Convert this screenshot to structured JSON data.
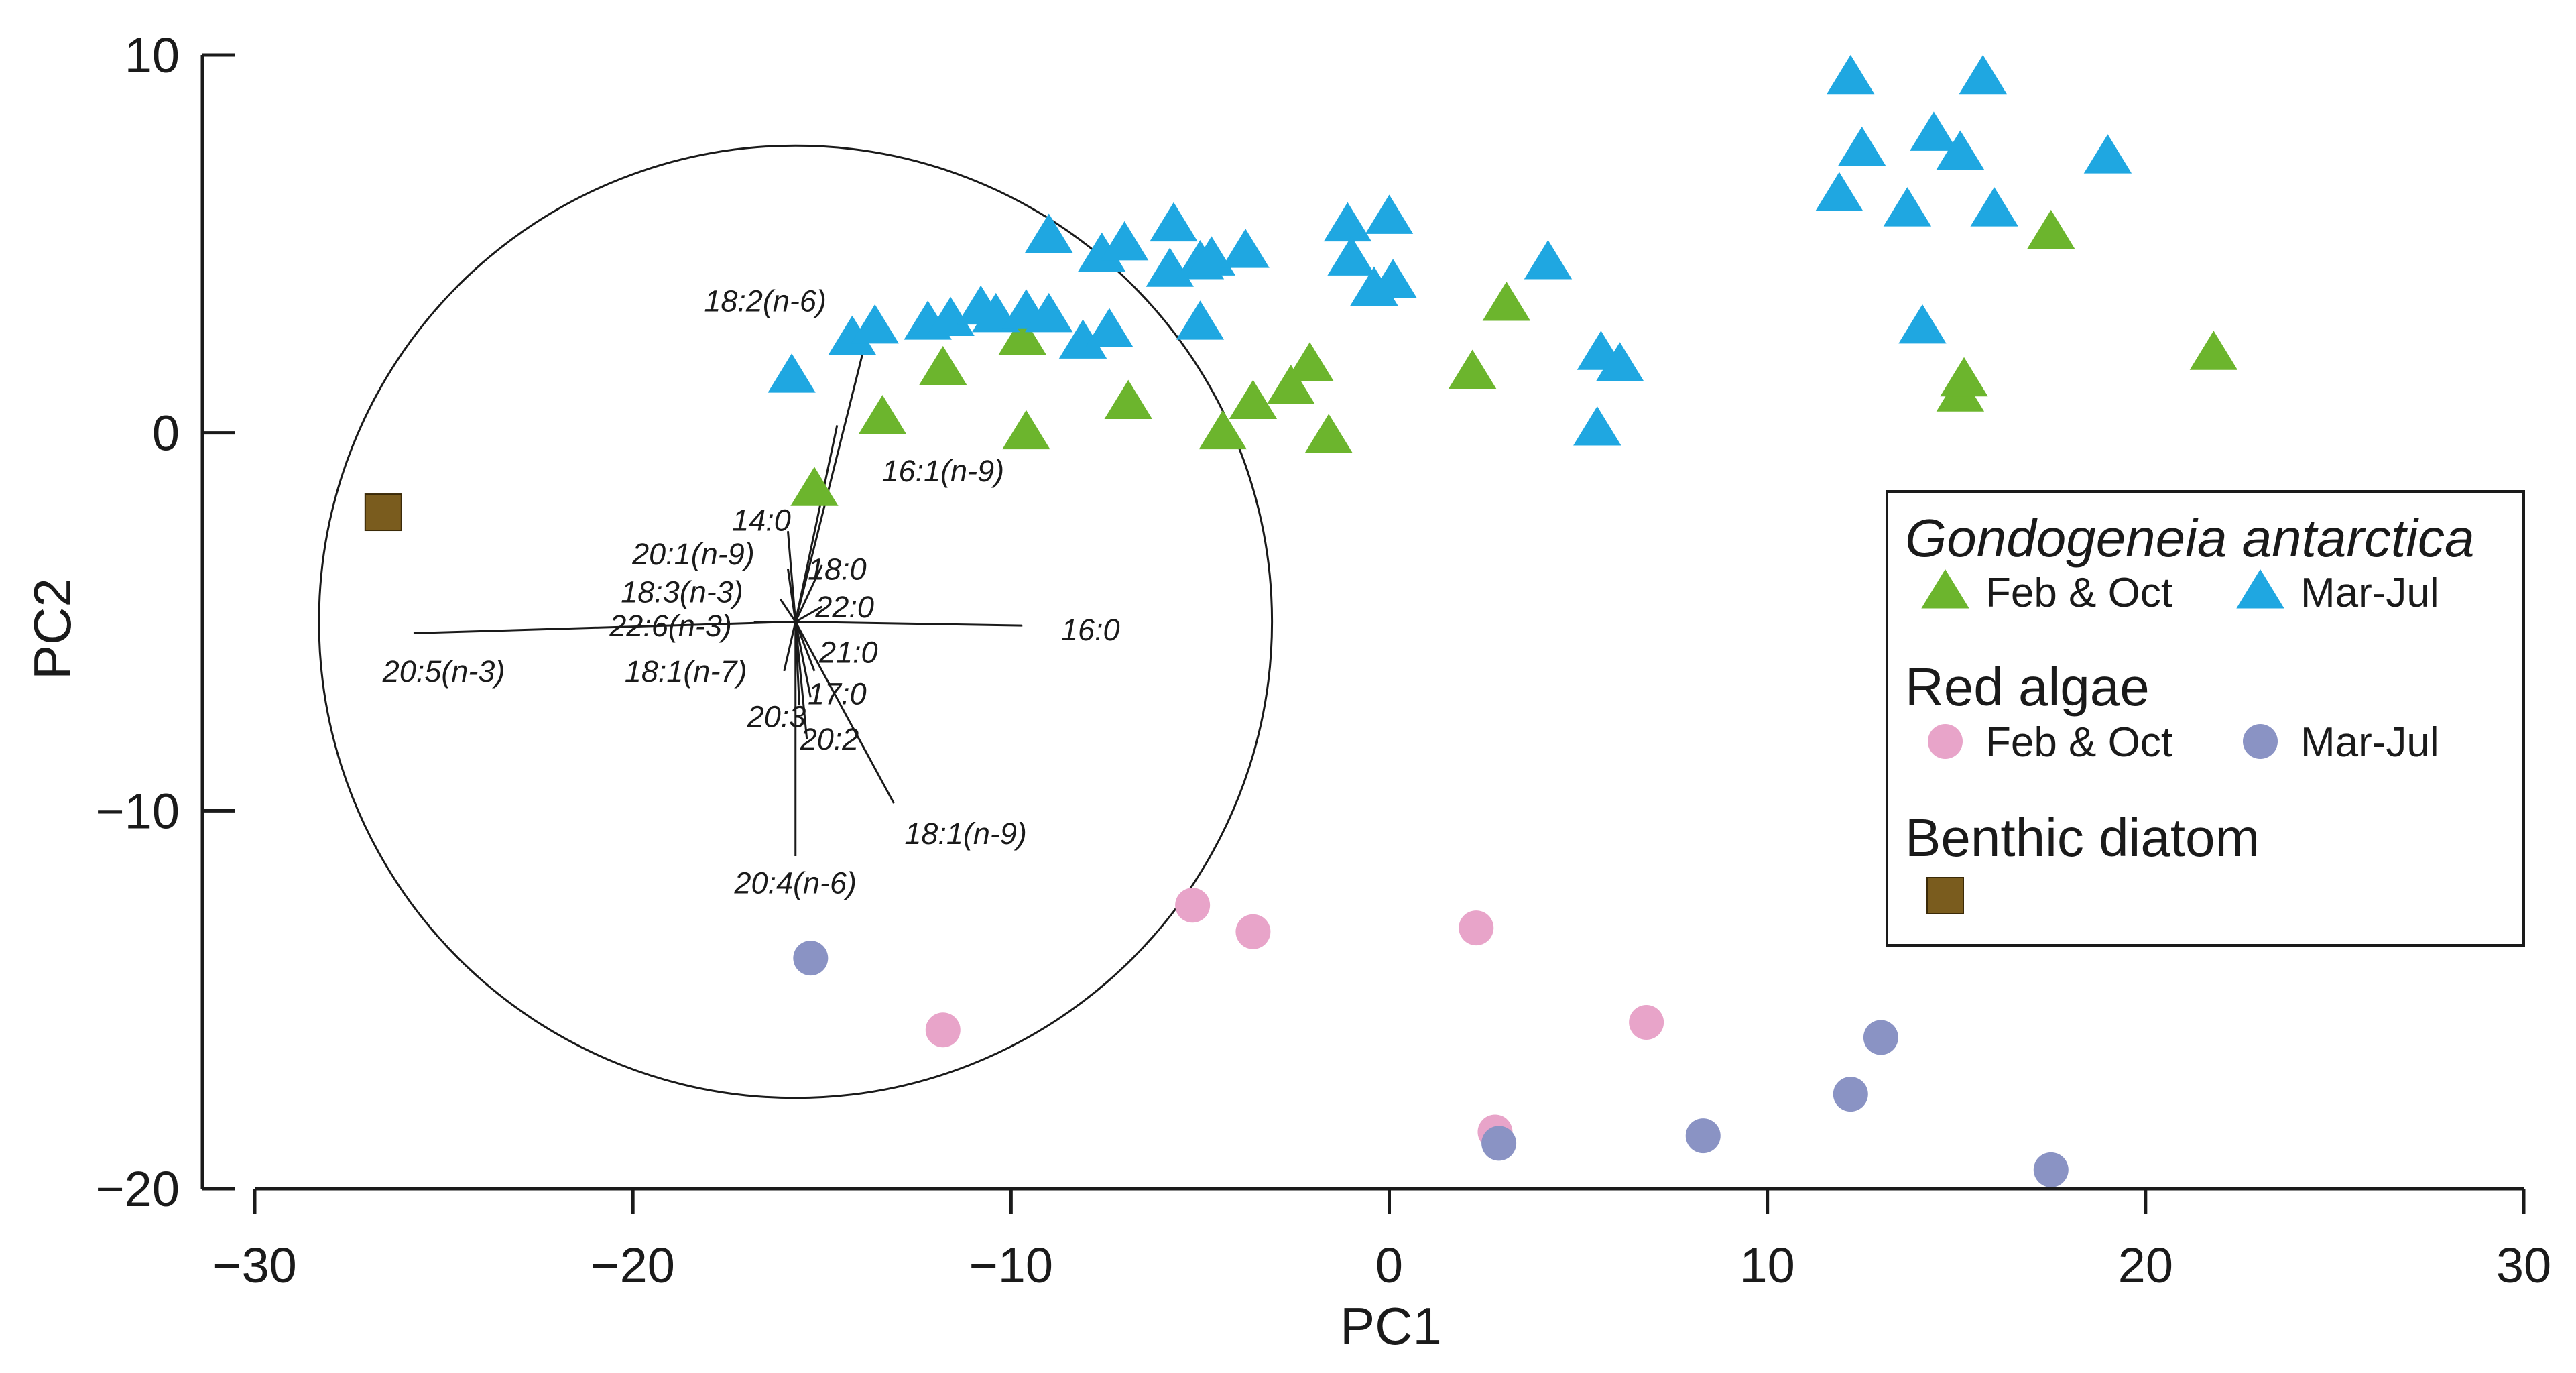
{
  "chart_data": {
    "type": "scatter",
    "xlabel": "PC1",
    "ylabel": "PC2",
    "xlim": [
      -30,
      30
    ],
    "ylim": [
      -20,
      10
    ],
    "xticks": [
      -30,
      -20,
      -10,
      0,
      10,
      20,
      30
    ],
    "yticks": [
      -20,
      -10,
      0,
      10
    ],
    "xtick_labels": [
      "−30",
      "−20",
      "−10",
      "0",
      "10",
      "20",
      "30"
    ],
    "ytick_labels": [
      "−20",
      "−10",
      "0",
      "10"
    ],
    "grid": false,
    "legend_position": "right",
    "series": [
      {
        "group": "Gondogeneia antarctica",
        "name": "Feb & Oct",
        "marker": "triangle",
        "color": "#6CB52D",
        "points": [
          [
            -15.2,
            -1.5
          ],
          [
            -13.4,
            0.4
          ],
          [
            -11.8,
            1.7
          ],
          [
            -9.6,
            0.0
          ],
          [
            -9.7,
            2.5
          ],
          [
            -6.9,
            0.8
          ],
          [
            -4.4,
            0.0
          ],
          [
            -3.6,
            0.8
          ],
          [
            -2.6,
            1.2
          ],
          [
            -2.1,
            1.8
          ],
          [
            -1.6,
            -0.1
          ],
          [
            2.2,
            1.6
          ],
          [
            3.1,
            3.4
          ],
          [
            15.1,
            1.0
          ],
          [
            15.2,
            1.4
          ],
          [
            17.5,
            5.3
          ],
          [
            21.8,
            2.1
          ]
        ]
      },
      {
        "group": "Gondogeneia antarctica",
        "name": "Mar-Jul",
        "marker": "triangle",
        "color": "#1FA7E1",
        "points": [
          [
            -15.8,
            1.5
          ],
          [
            -14.2,
            2.5
          ],
          [
            -13.6,
            2.8
          ],
          [
            -12.2,
            2.9
          ],
          [
            -11.6,
            3.0
          ],
          [
            -10.8,
            3.3
          ],
          [
            -10.4,
            3.1
          ],
          [
            -9.6,
            3.2
          ],
          [
            -9.0,
            3.1
          ],
          [
            -9.0,
            5.2
          ],
          [
            -8.1,
            2.4
          ],
          [
            -7.4,
            2.7
          ],
          [
            -7.6,
            4.7
          ],
          [
            -7.0,
            5.0
          ],
          [
            -5.8,
            4.3
          ],
          [
            -5.7,
            5.5
          ],
          [
            -5.0,
            4.5
          ],
          [
            -4.7,
            4.6
          ],
          [
            -3.8,
            4.8
          ],
          [
            -5.0,
            2.9
          ],
          [
            -1.1,
            5.5
          ],
          [
            -1.0,
            4.6
          ],
          [
            -0.4,
            3.8
          ],
          [
            0.0,
            5.7
          ],
          [
            0.1,
            4.0
          ],
          [
            4.2,
            4.5
          ],
          [
            5.5,
            0.1
          ],
          [
            5.6,
            2.1
          ],
          [
            6.1,
            1.8
          ],
          [
            11.9,
            6.3
          ],
          [
            12.2,
            9.4
          ],
          [
            12.5,
            7.5
          ],
          [
            13.7,
            5.9
          ],
          [
            14.1,
            2.8
          ],
          [
            14.4,
            7.9
          ],
          [
            15.1,
            7.4
          ],
          [
            15.7,
            9.4
          ],
          [
            16.0,
            5.9
          ],
          [
            19.0,
            7.3
          ]
        ]
      },
      {
        "group": "Red algae",
        "name": "Feb & Oct",
        "marker": "circle",
        "color": "#E8A4C9",
        "points": [
          [
            -11.8,
            -15.8
          ],
          [
            -5.2,
            -12.5
          ],
          [
            -3.6,
            -13.2
          ],
          [
            2.3,
            -13.1
          ],
          [
            2.8,
            -18.5
          ],
          [
            6.8,
            -15.6
          ]
        ]
      },
      {
        "group": "Red algae",
        "name": "Mar-Jul",
        "marker": "circle",
        "color": "#8A93C4",
        "points": [
          [
            -15.3,
            -13.9
          ],
          [
            2.9,
            -18.8
          ],
          [
            8.3,
            -18.6
          ],
          [
            12.2,
            -17.5
          ],
          [
            13.0,
            -16.0
          ],
          [
            17.5,
            -19.5
          ]
        ]
      },
      {
        "group": "Benthic diatom",
        "name": "",
        "marker": "square",
        "color": "#7A5C1E",
        "points": [
          [
            -26.6,
            -2.1
          ]
        ]
      }
    ],
    "loading_circle": {
      "center": [
        -15.7,
        -5.0
      ],
      "radius_x": 12.6,
      "radius_y": 12.6
    },
    "loading_vectors": [
      {
        "label": "18:2(n-6)",
        "end": [
          -13.8,
          2.6
        ],
        "label_pos": [
          -16.5,
          3.5
        ]
      },
      {
        "label": "16:1(n-9)",
        "end": [
          -14.6,
          0.2
        ],
        "label_pos": [
          -11.8,
          -1.0
        ]
      },
      {
        "label": "14:0",
        "end": [
          -15.9,
          -2.6
        ],
        "label_pos": [
          -16.6,
          -2.3
        ]
      },
      {
        "label": "20:1(n-9)",
        "end": [
          -15.9,
          -3.6
        ],
        "label_pos": [
          -18.4,
          -3.2
        ]
      },
      {
        "label": "18:0",
        "end": [
          -15.0,
          -3.5
        ],
        "label_pos": [
          -14.6,
          -3.6
        ]
      },
      {
        "label": "18:3(n-3)",
        "end": [
          -16.1,
          -4.4
        ],
        "label_pos": [
          -18.7,
          -4.2
        ]
      },
      {
        "label": "22:0",
        "end": [
          -15.0,
          -4.6
        ],
        "label_pos": [
          -14.4,
          -4.6
        ]
      },
      {
        "label": "22:6(n-3)",
        "end": [
          -16.8,
          -5.0
        ],
        "label_pos": [
          -19.0,
          -5.1
        ]
      },
      {
        "label": "20:5(n-3)",
        "end": [
          -25.8,
          -5.3
        ],
        "label_pos": [
          -25.0,
          -6.3
        ]
      },
      {
        "label": "16:0",
        "end": [
          -9.7,
          -5.1
        ],
        "label_pos": [
          -7.9,
          -5.2
        ]
      },
      {
        "label": "18:1(n-7)",
        "end": [
          -16.0,
          -6.3
        ],
        "label_pos": [
          -18.6,
          -6.3
        ]
      },
      {
        "label": "21:0",
        "end": [
          -15.2,
          -6.3
        ],
        "label_pos": [
          -14.3,
          -5.8
        ]
      },
      {
        "label": "17:0",
        "end": [
          -15.3,
          -7.0
        ],
        "label_pos": [
          -14.6,
          -6.9
        ]
      },
      {
        "label": "20:3",
        "end": [
          -15.6,
          -7.2
        ],
        "label_pos": [
          -16.2,
          -7.5
        ]
      },
      {
        "label": "20:2",
        "end": [
          -15.4,
          -8.1
        ],
        "label_pos": [
          -14.8,
          -8.1
        ]
      },
      {
        "label": "18:1(n-9)",
        "end": [
          -13.1,
          -9.8
        ],
        "label_pos": [
          -11.2,
          -10.6
        ]
      },
      {
        "label": "20:4(n-6)",
        "end": [
          -15.7,
          -11.2
        ],
        "label_pos": [
          -15.7,
          -11.9
        ]
      }
    ],
    "legend": {
      "groups": [
        {
          "title": "Gondogeneia antarctica",
          "italic": true,
          "entries": [
            {
              "label": "Feb & Oct",
              "series": 0
            },
            {
              "label": "Mar-Jul",
              "series": 1
            }
          ]
        },
        {
          "title": "Red algae",
          "italic": false,
          "entries": [
            {
              "label": "Feb & Oct",
              "series": 2
            },
            {
              "label": "Mar-Jul",
              "series": 3
            }
          ]
        },
        {
          "title": "Benthic diatom",
          "italic": false,
          "entries": [
            {
              "label": "",
              "series": 4
            }
          ]
        }
      ]
    }
  }
}
